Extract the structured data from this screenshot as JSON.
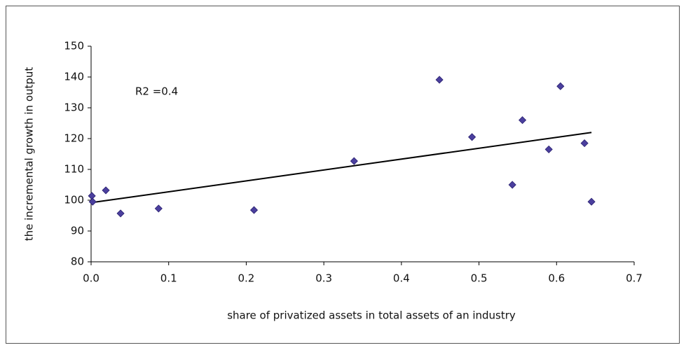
{
  "chart_data": {
    "type": "scatter",
    "xlabel": "share of privatized assets in total assets of an industry",
    "ylabel": "the incremental growth in output",
    "annotation": "R2 =0.4",
    "color": "#4b3f9e",
    "x": [
      0.001,
      0.002,
      0.019,
      0.038,
      0.087,
      0.21,
      0.339,
      0.449,
      0.491,
      0.543,
      0.556,
      0.59,
      0.605,
      0.636,
      0.645
    ],
    "y": [
      101.4,
      99.5,
      103.2,
      95.7,
      97.3,
      96.8,
      112.7,
      139.1,
      120.5,
      105,
      126,
      116.5,
      137,
      118.5,
      99.5
    ],
    "trendline": {
      "x": [
        0,
        0.645
      ],
      "y": [
        99.2,
        122
      ]
    },
    "xlim": [
      0,
      0.7
    ],
    "xticks": [
      {
        "value": 0,
        "label": "0.0"
      },
      0.1,
      0.2,
      0.3,
      0.4,
      0.5,
      0.6,
      0.7
    ],
    "ylim": [
      80,
      150
    ],
    "yticks": [
      80,
      90,
      100,
      110,
      120,
      130,
      140,
      150
    ],
    "grid": false
  }
}
